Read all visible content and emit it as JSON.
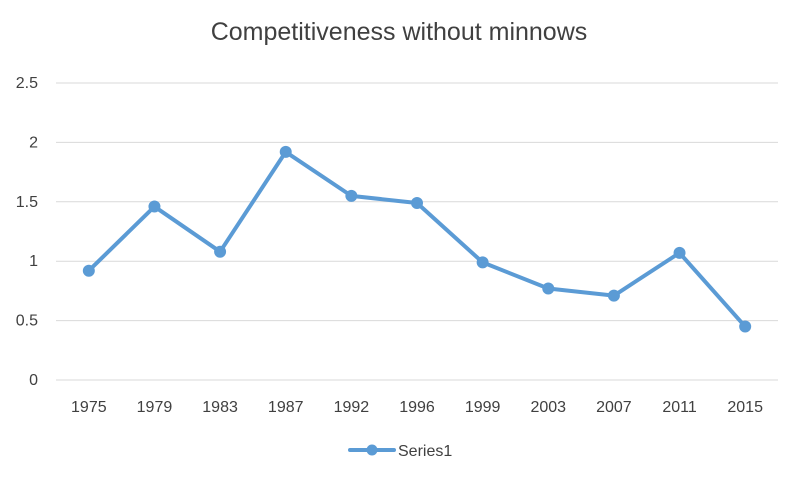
{
  "chart_data": {
    "type": "line",
    "title": "Competitiveness without minnows",
    "xlabel": "",
    "ylabel": "",
    "categories": [
      "1975",
      "1979",
      "1983",
      "1987",
      "1992",
      "1996",
      "1999",
      "2003",
      "2007",
      "2011",
      "2015"
    ],
    "series": [
      {
        "name": "Series1",
        "values": [
          0.92,
          1.46,
          1.08,
          1.92,
          1.55,
          1.49,
          0.99,
          0.77,
          0.71,
          1.07,
          0.45
        ],
        "color": "#5B9BD5"
      }
    ],
    "ylim": [
      0,
      2.5
    ],
    "yticks": [
      "0",
      "0.5",
      "1",
      "1.5",
      "2",
      "2.5"
    ],
    "grid": true,
    "legend_position": "bottom",
    "grid_color": "#d9d9d9",
    "text_color": "#404040"
  }
}
